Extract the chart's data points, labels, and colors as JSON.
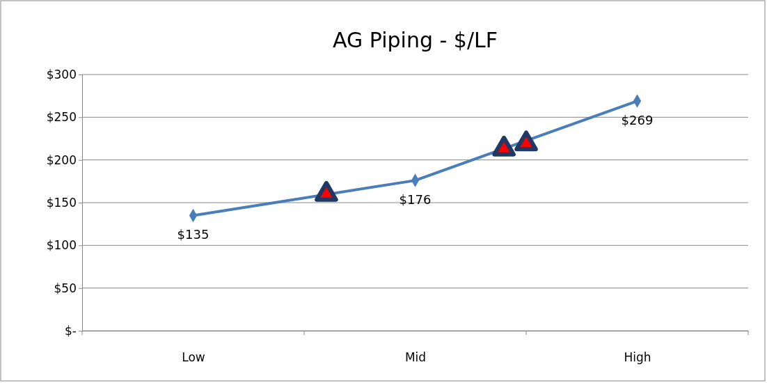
{
  "chart_data": {
    "type": "line",
    "title": "AG Piping - $/LF",
    "categories": [
      null,
      null,
      null,
      null,
      null,
      "Low",
      null,
      null,
      null,
      null,
      null,
      null,
      null,
      null,
      null,
      "Mid",
      null,
      null,
      null,
      null,
      null,
      null,
      null,
      null,
      null,
      "High",
      null,
      null,
      null,
      null,
      null
    ],
    "ylim": [
      0,
      300
    ],
    "yticks": [
      {
        "value": 0,
        "label": "$-"
      },
      {
        "value": 50,
        "label": "$50"
      },
      {
        "value": 100,
        "label": "$100"
      },
      {
        "value": 150,
        "label": "$150"
      },
      {
        "value": 200,
        "label": "$200"
      },
      {
        "value": 250,
        "label": "$250"
      },
      {
        "value": 300,
        "label": "$300"
      }
    ],
    "grid": "y",
    "series": [
      {
        "color": "#4a7ebb",
        "marker": "diamond",
        "values": [
          null,
          null,
          null,
          null,
          null,
          135,
          null,
          null,
          null,
          null,
          null,
          null,
          null,
          null,
          null,
          176,
          null,
          null,
          null,
          null,
          null,
          null,
          null,
          null,
          null,
          269,
          null,
          null,
          null,
          null,
          null
        ],
        "value_labels": [
          null,
          null,
          null,
          null,
          null,
          "$135",
          null,
          null,
          null,
          null,
          null,
          null,
          null,
          null,
          null,
          "$176",
          null,
          null,
          null,
          null,
          null,
          null,
          null,
          null,
          null,
          "$269",
          null,
          null,
          null,
          null,
          null
        ]
      },
      {
        "type": "scatter",
        "color": "#ff0000",
        "marker": "triangle",
        "values": [
          null,
          null,
          null,
          null,
          null,
          null,
          null,
          null,
          null,
          null,
          null,
          160,
          null,
          null,
          null,
          null,
          null,
          null,
          null,
          213,
          219,
          null,
          null,
          null,
          null,
          null,
          null,
          null,
          null,
          null,
          null
        ]
      }
    ]
  }
}
